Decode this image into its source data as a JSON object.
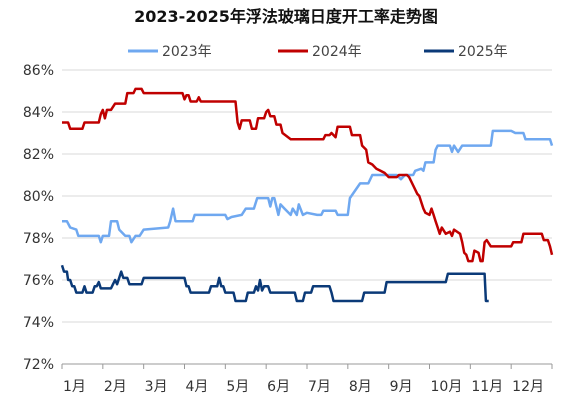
{
  "chart_data": {
    "type": "line",
    "title": "2023-2025年浮法玻璃日度开工率走势图",
    "xlabel": "",
    "ylabel": "",
    "x_categories": [
      "1月",
      "2月",
      "3月",
      "4月",
      "5月",
      "6月",
      "7月",
      "8月",
      "9月",
      "10月",
      "11月",
      "12月"
    ],
    "x_range": [
      1,
      13
    ],
    "y_ticks": [
      "72%",
      "74%",
      "76%",
      "78%",
      "80%",
      "82%",
      "84%",
      "86%"
    ],
    "ylim": [
      72,
      86
    ],
    "grid": "horizontal",
    "legend": "top",
    "series": [
      {
        "name": "2023年",
        "color": "#6fa8f0",
        "points": [
          [
            1.0,
            78.8
          ],
          [
            1.12,
            78.8
          ],
          [
            1.2,
            78.5
          ],
          [
            1.35,
            78.4
          ],
          [
            1.4,
            78.1
          ],
          [
            1.9,
            78.1
          ],
          [
            1.95,
            77.8
          ],
          [
            2.0,
            78.1
          ],
          [
            2.15,
            78.1
          ],
          [
            2.2,
            78.8
          ],
          [
            2.35,
            78.8
          ],
          [
            2.4,
            78.4
          ],
          [
            2.55,
            78.1
          ],
          [
            2.65,
            78.1
          ],
          [
            2.7,
            77.8
          ],
          [
            2.8,
            78.1
          ],
          [
            2.9,
            78.1
          ],
          [
            3.0,
            78.4
          ],
          [
            3.6,
            78.5
          ],
          [
            3.65,
            78.8
          ],
          [
            3.72,
            79.4
          ],
          [
            3.78,
            78.8
          ],
          [
            4.2,
            78.8
          ],
          [
            4.25,
            79.1
          ],
          [
            5.0,
            79.1
          ],
          [
            5.05,
            78.9
          ],
          [
            5.15,
            79.0
          ],
          [
            5.4,
            79.1
          ],
          [
            5.5,
            79.4
          ],
          [
            5.7,
            79.4
          ],
          [
            5.78,
            79.9
          ],
          [
            6.05,
            79.9
          ],
          [
            6.1,
            79.5
          ],
          [
            6.15,
            79.9
          ],
          [
            6.2,
            79.9
          ],
          [
            6.3,
            79.1
          ],
          [
            6.35,
            79.6
          ],
          [
            6.45,
            79.4
          ],
          [
            6.6,
            79.1
          ],
          [
            6.65,
            79.4
          ],
          [
            6.75,
            79.1
          ],
          [
            6.8,
            79.6
          ],
          [
            6.9,
            79.1
          ],
          [
            7.0,
            79.2
          ],
          [
            7.25,
            79.1
          ],
          [
            7.35,
            79.1
          ],
          [
            7.4,
            79.3
          ],
          [
            7.7,
            79.3
          ],
          [
            7.75,
            79.1
          ],
          [
            8.0,
            79.1
          ],
          [
            8.05,
            79.9
          ],
          [
            8.3,
            80.6
          ],
          [
            8.5,
            80.6
          ],
          [
            8.6,
            81.0
          ],
          [
            9.2,
            81.0
          ],
          [
            9.3,
            80.8
          ],
          [
            9.4,
            81.0
          ],
          [
            9.6,
            81.0
          ],
          [
            9.65,
            81.2
          ],
          [
            9.8,
            81.3
          ],
          [
            9.85,
            81.2
          ],
          [
            9.9,
            81.6
          ],
          [
            10.1,
            81.6
          ],
          [
            10.15,
            82.2
          ],
          [
            10.2,
            82.4
          ],
          [
            10.5,
            82.4
          ],
          [
            10.55,
            82.1
          ],
          [
            10.6,
            82.4
          ],
          [
            10.7,
            82.1
          ],
          [
            10.8,
            82.4
          ],
          [
            11.5,
            82.4
          ],
          [
            11.55,
            83.1
          ],
          [
            12.0,
            83.1
          ],
          [
            12.1,
            83.0
          ],
          [
            12.3,
            83.0
          ],
          [
            12.35,
            82.7
          ],
          [
            12.95,
            82.7
          ],
          [
            13.0,
            82.4
          ]
        ]
      },
      {
        "name": "2024年",
        "color": "#c00000",
        "points": [
          [
            1.0,
            83.5
          ],
          [
            1.15,
            83.5
          ],
          [
            1.2,
            83.2
          ],
          [
            1.5,
            83.2
          ],
          [
            1.55,
            83.5
          ],
          [
            1.9,
            83.5
          ],
          [
            1.95,
            83.9
          ],
          [
            2.0,
            84.1
          ],
          [
            2.05,
            83.7
          ],
          [
            2.1,
            84.1
          ],
          [
            2.2,
            84.1
          ],
          [
            2.3,
            84.4
          ],
          [
            2.55,
            84.4
          ],
          [
            2.6,
            84.9
          ],
          [
            2.75,
            84.9
          ],
          [
            2.8,
            85.1
          ],
          [
            2.95,
            85.1
          ],
          [
            3.0,
            84.9
          ],
          [
            3.95,
            84.9
          ],
          [
            4.0,
            84.6
          ],
          [
            4.05,
            84.8
          ],
          [
            4.1,
            84.8
          ],
          [
            4.15,
            84.5
          ],
          [
            4.3,
            84.5
          ],
          [
            4.35,
            84.7
          ],
          [
            4.4,
            84.5
          ],
          [
            5.25,
            84.5
          ],
          [
            5.3,
            83.5
          ],
          [
            5.35,
            83.2
          ],
          [
            5.4,
            83.6
          ],
          [
            5.6,
            83.6
          ],
          [
            5.65,
            83.2
          ],
          [
            5.75,
            83.2
          ],
          [
            5.8,
            83.7
          ],
          [
            5.95,
            83.7
          ],
          [
            6.0,
            84.0
          ],
          [
            6.05,
            84.1
          ],
          [
            6.1,
            83.8
          ],
          [
            6.2,
            83.8
          ],
          [
            6.25,
            83.4
          ],
          [
            6.35,
            83.4
          ],
          [
            6.4,
            83.0
          ],
          [
            6.6,
            82.7
          ],
          [
            7.4,
            82.7
          ],
          [
            7.45,
            82.9
          ],
          [
            7.55,
            82.9
          ],
          [
            7.6,
            83.0
          ],
          [
            7.7,
            82.8
          ],
          [
            7.75,
            83.3
          ],
          [
            8.05,
            83.3
          ],
          [
            8.1,
            82.9
          ],
          [
            8.3,
            82.9
          ],
          [
            8.35,
            82.4
          ],
          [
            8.45,
            82.2
          ],
          [
            8.5,
            81.6
          ],
          [
            8.6,
            81.5
          ],
          [
            8.7,
            81.3
          ],
          [
            8.8,
            81.2
          ],
          [
            8.9,
            81.1
          ],
          [
            9.0,
            80.9
          ],
          [
            9.2,
            80.9
          ],
          [
            9.25,
            81.0
          ],
          [
            9.45,
            81.0
          ],
          [
            9.5,
            80.9
          ],
          [
            9.6,
            80.5
          ],
          [
            9.7,
            80.1
          ],
          [
            9.75,
            80.0
          ],
          [
            9.8,
            79.7
          ],
          [
            9.85,
            79.4
          ],
          [
            9.9,
            79.2
          ],
          [
            10.0,
            79.1
          ],
          [
            10.05,
            79.4
          ],
          [
            10.1,
            79.1
          ],
          [
            10.15,
            78.8
          ],
          [
            10.2,
            78.5
          ],
          [
            10.25,
            78.2
          ],
          [
            10.3,
            78.5
          ],
          [
            10.4,
            78.2
          ],
          [
            10.5,
            78.3
          ],
          [
            10.55,
            78.1
          ],
          [
            10.6,
            78.4
          ],
          [
            10.75,
            78.2
          ],
          [
            10.8,
            77.8
          ],
          [
            10.85,
            77.3
          ],
          [
            10.9,
            77.2
          ],
          [
            10.95,
            76.9
          ],
          [
            11.05,
            76.9
          ],
          [
            11.1,
            77.4
          ],
          [
            11.2,
            77.3
          ],
          [
            11.25,
            76.9
          ],
          [
            11.3,
            76.9
          ],
          [
            11.35,
            77.8
          ],
          [
            11.4,
            77.9
          ],
          [
            11.5,
            77.6
          ],
          [
            12.0,
            77.6
          ],
          [
            12.05,
            77.8
          ],
          [
            12.25,
            77.8
          ],
          [
            12.3,
            78.2
          ],
          [
            12.75,
            78.2
          ],
          [
            12.8,
            77.9
          ],
          [
            12.9,
            77.9
          ],
          [
            12.95,
            77.6
          ],
          [
            13.0,
            77.2
          ]
        ]
      },
      {
        "name": "2025年",
        "color": "#0b3a78",
        "points": [
          [
            1.0,
            76.7
          ],
          [
            1.05,
            76.4
          ],
          [
            1.12,
            76.4
          ],
          [
            1.15,
            76.0
          ],
          [
            1.2,
            76.0
          ],
          [
            1.25,
            75.7
          ],
          [
            1.3,
            75.7
          ],
          [
            1.35,
            75.4
          ],
          [
            1.5,
            75.4
          ],
          [
            1.55,
            75.7
          ],
          [
            1.6,
            75.4
          ],
          [
            1.75,
            75.4
          ],
          [
            1.8,
            75.7
          ],
          [
            1.85,
            75.7
          ],
          [
            1.9,
            75.9
          ],
          [
            1.95,
            75.6
          ],
          [
            2.2,
            75.6
          ],
          [
            2.25,
            75.8
          ],
          [
            2.3,
            76.0
          ],
          [
            2.35,
            75.8
          ],
          [
            2.4,
            76.1
          ],
          [
            2.45,
            76.4
          ],
          [
            2.5,
            76.1
          ],
          [
            2.6,
            76.1
          ],
          [
            2.65,
            75.8
          ],
          [
            2.95,
            75.8
          ],
          [
            3.0,
            76.1
          ],
          [
            4.0,
            76.1
          ],
          [
            4.05,
            75.7
          ],
          [
            4.1,
            75.7
          ],
          [
            4.15,
            75.4
          ],
          [
            4.6,
            75.4
          ],
          [
            4.65,
            75.7
          ],
          [
            4.8,
            75.7
          ],
          [
            4.85,
            76.1
          ],
          [
            4.9,
            75.7
          ],
          [
            4.95,
            75.7
          ],
          [
            5.0,
            75.4
          ],
          [
            5.2,
            75.4
          ],
          [
            5.25,
            75.0
          ],
          [
            5.5,
            75.0
          ],
          [
            5.55,
            75.4
          ],
          [
            5.7,
            75.4
          ],
          [
            5.75,
            75.7
          ],
          [
            5.8,
            75.5
          ],
          [
            5.85,
            76.0
          ],
          [
            5.9,
            75.5
          ],
          [
            5.95,
            75.7
          ],
          [
            6.05,
            75.7
          ],
          [
            6.1,
            75.4
          ],
          [
            6.7,
            75.4
          ],
          [
            6.75,
            75.0
          ],
          [
            6.9,
            75.0
          ],
          [
            6.95,
            75.4
          ],
          [
            7.1,
            75.4
          ],
          [
            7.15,
            75.7
          ],
          [
            7.55,
            75.7
          ],
          [
            7.6,
            75.4
          ],
          [
            7.65,
            75.0
          ],
          [
            8.35,
            75.0
          ],
          [
            8.4,
            75.4
          ],
          [
            8.9,
            75.4
          ],
          [
            8.95,
            75.9
          ],
          [
            10.4,
            75.9
          ],
          [
            10.45,
            76.3
          ],
          [
            11.35,
            76.3
          ],
          [
            11.38,
            75.0
          ],
          [
            11.45,
            75.0
          ]
        ]
      }
    ]
  }
}
